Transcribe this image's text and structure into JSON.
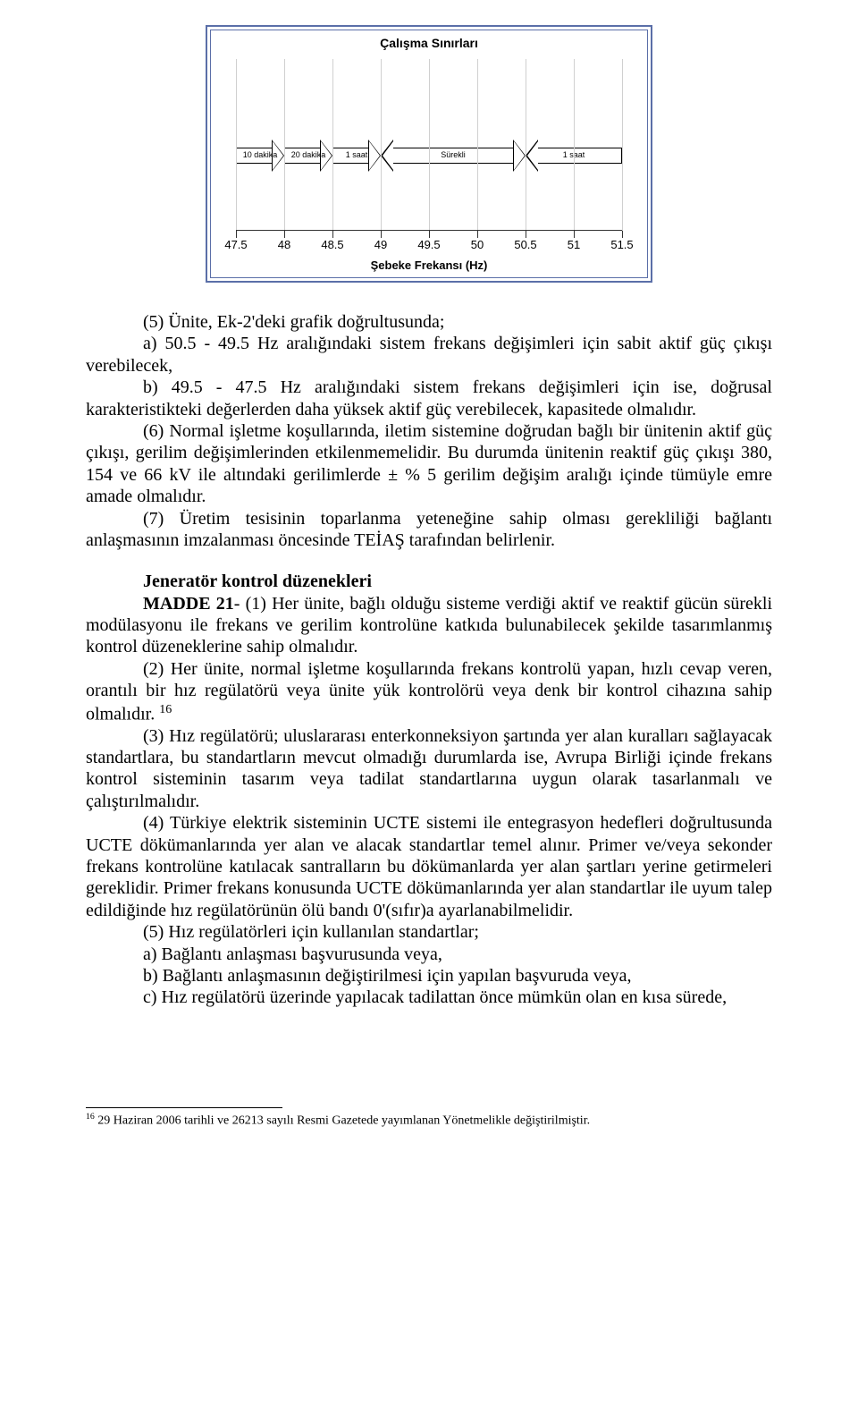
{
  "figure": {
    "title": "Çalışma Sınırları",
    "x_title": "Şebeke Frekansı (Hz)",
    "x_min": 47.5,
    "x_max": 51.5,
    "ticks": [
      47.5,
      48,
      48.5,
      49,
      49.5,
      50,
      50.5,
      51,
      51.5
    ],
    "tick_labels": [
      "47.5",
      "48",
      "48.5",
      "49",
      "49.5",
      "50",
      "50.5",
      "51",
      "51.5"
    ],
    "gridline_color": "#d0d0d0",
    "border_color": "#5b6fa8",
    "arrows": [
      {
        "from": 47.5,
        "to": 48.0,
        "label": "10 dakika",
        "left_head": false,
        "right_head": true
      },
      {
        "from": 48.0,
        "to": 48.5,
        "label": "20 dakika",
        "left_head": false,
        "right_head": true
      },
      {
        "from": 48.5,
        "to": 49.0,
        "label": "1 saat",
        "left_head": false,
        "right_head": true
      },
      {
        "from": 49.0,
        "to": 50.5,
        "label": "Sürekli",
        "left_head": true,
        "right_head": true
      },
      {
        "from": 50.5,
        "to": 51.5,
        "label": "1 saat",
        "left_head": true,
        "right_head": false
      }
    ]
  },
  "body": {
    "p5_lead": "(5) Ünite, Ek-2'deki grafik doğrultusunda;",
    "p5_a": "a) 50.5 - 49.5 Hz aralığındaki sistem frekans değişimleri için sabit aktif güç çıkışı verebilecek,",
    "p5_b": "b) 49.5 - 47.5 Hz aralığındaki sistem frekans değişimleri için ise, doğrusal karakteristikteki değerlerden daha yüksek aktif güç verebilecek, kapasitede olmalıdır.",
    "p6": "(6) Normal işletme koşullarında, iletim sistemine doğrudan bağlı bir ünitenin aktif güç çıkışı, gerilim değişimlerinden etkilenmemelidir. Bu durumda ünitenin reaktif güç çıkışı 380, 154 ve 66 kV ile altındaki gerilimlerde ± % 5 gerilim değişim aralığı içinde tümüyle emre amade olmalıdır.",
    "p7": "(7) Üretim tesisinin toparlanma yeteneğine sahip olması gerekliliği bağlantı anlaşmasının imzalanması öncesinde TEİAŞ tarafından belirlenir.",
    "heading": "Jeneratör kontrol düzenekleri",
    "m21_lead": "MADDE 21",
    "m21_1": "- (1) Her ünite, bağlı olduğu sisteme verdiği aktif ve reaktif gücün sürekli modülasyonu ile frekans ve gerilim kontrolüne katkıda bulunabilecek şekilde tasarımlanmış kontrol düzeneklerine sahip olmalıdır.",
    "m21_2a": "(2) Her ünite, normal işletme koşullarında frekans kontrolü yapan, hızlı cevap veren, orantılı bir hız regülatörü veya ünite yük kontrolörü veya denk bir kontrol cihazına sahip olmalıdır. ",
    "fn_ref": "16",
    "m21_3": "(3) Hız regülatörü; uluslararası enterkonneksiyon şartında yer alan kuralları sağlayacak standartlara, bu standartların mevcut olmadığı durumlarda ise, Avrupa Birliği içinde frekans kontrol sisteminin tasarım veya tadilat standartlarına uygun olarak tasarlanmalı ve çalıştırılmalıdır.",
    "m21_4": "(4) Türkiye elektrik sisteminin UCTE sistemi ile entegrasyon hedefleri doğrultusunda UCTE dökümanlarında yer alan ve alacak standartlar temel alınır. Primer ve/veya sekonder frekans kontrolüne katılacak santralların bu dökümanlarda yer alan şartları yerine getirmeleri gereklidir. Primer frekans konusunda UCTE dökümanlarında yer alan standartlar ile uyum talep edildiğinde hız regülatörünün ölü bandı 0'(sıfır)a ayarlanabilmelidir.",
    "m21_5": "(5) Hız regülatörleri için kullanılan standartlar;",
    "m21_5a": "a)  Bağlantı anlaşması başvurusunda veya,",
    "m21_5b": "b)  Bağlantı anlaşmasının değiştirilmesi için yapılan başvuruda veya,",
    "m21_5c": "c)  Hız regülatörü üzerinde yapılacak tadilattan önce mümkün olan en kısa sürede,"
  },
  "footnote": {
    "num": "16",
    "text": " 29 Haziran 2006 tarihli ve 26213 sayılı Resmi Gazetede yayımlanan Yönetmelikle değiştirilmiştir."
  }
}
